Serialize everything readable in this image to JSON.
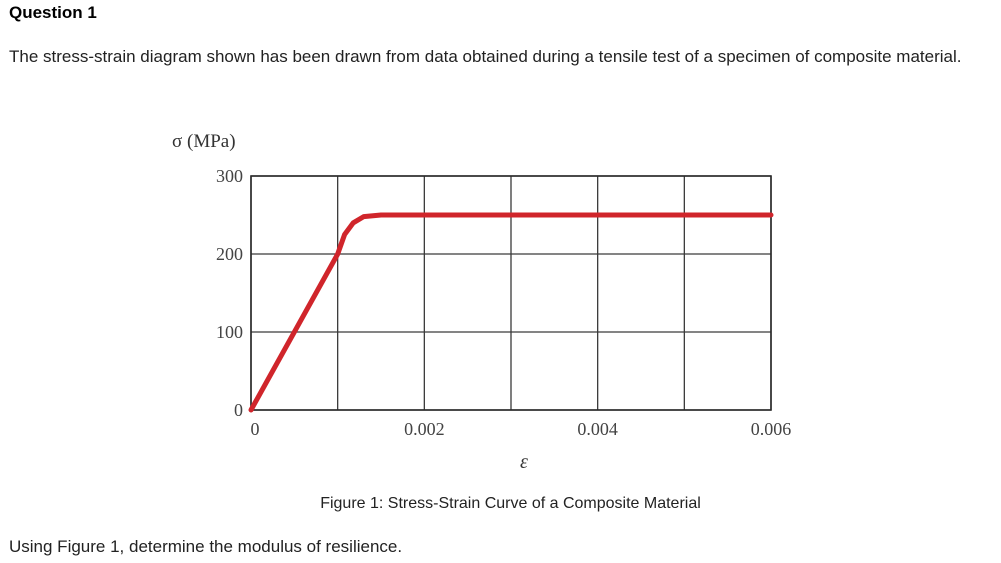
{
  "question": {
    "title": "Question 1",
    "text": "The stress-strain diagram shown has been drawn from data obtained during a tensile test of a specimen of composite material.",
    "caption": "Figure 1: Stress-Strain Curve of a Composite Material",
    "prompt": "Using Figure 1, determine the modulus of resilience."
  },
  "chart_data": {
    "type": "line",
    "ylabel": "σ (MPa)",
    "xlabel": "ε",
    "xlim": [
      0,
      0.006
    ],
    "ylim": [
      0,
      300
    ],
    "grid": true,
    "x_ticks": [
      0,
      0.001,
      0.002,
      0.003,
      0.004,
      0.005,
      0.006
    ],
    "x_tick_labels": [
      "0",
      "",
      "0.002",
      "",
      "0.004",
      "",
      "0.006"
    ],
    "y_ticks": [
      0,
      100,
      200,
      300
    ],
    "y_tick_labels": [
      "0",
      "100",
      "200",
      "300"
    ],
    "series": [
      {
        "color": "#d0252b",
        "points": [
          [
            0,
            0
          ],
          [
            0.001,
            200
          ],
          [
            0.00108,
            225
          ],
          [
            0.00118,
            240
          ],
          [
            0.0013,
            248
          ],
          [
            0.0015,
            250
          ],
          [
            0.006,
            250
          ]
        ]
      }
    ]
  }
}
